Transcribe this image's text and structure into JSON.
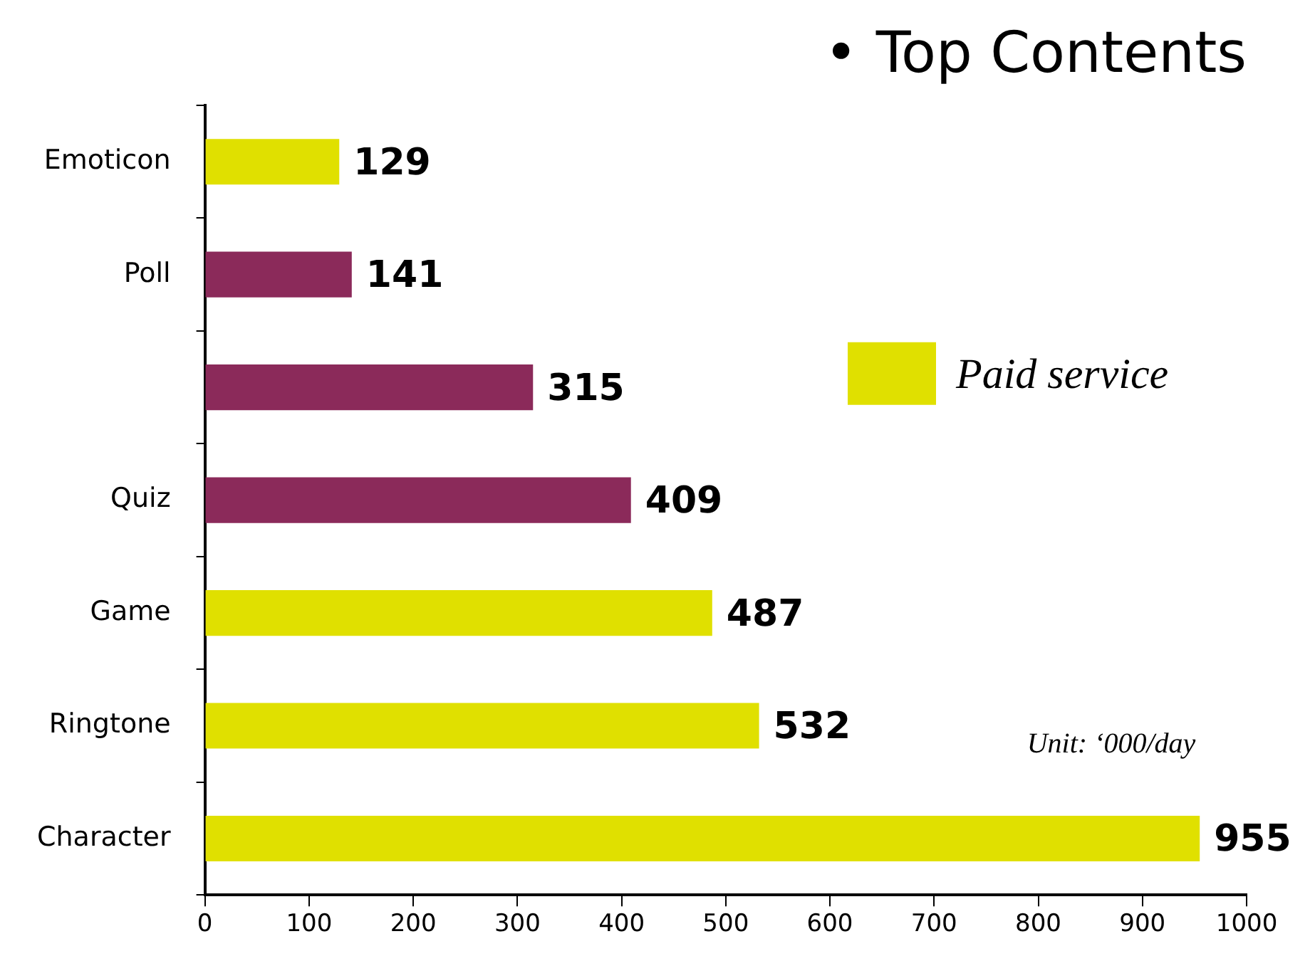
{
  "chart_data": {
    "type": "bar",
    "orientation": "horizontal",
    "title": "• Top Contents",
    "categories": [
      "Emoticon",
      "Poll",
      null,
      "Quiz",
      "Game",
      "Ringtone",
      "Character"
    ],
    "series": [
      {
        "name": "Paid service",
        "color": "#e0e000",
        "values": [
          129,
          null,
          null,
          null,
          487,
          532,
          955
        ]
      },
      {
        "color": "#8b2a5a",
        "values": [
          null,
          141,
          315,
          409,
          null,
          null,
          null
        ]
      }
    ],
    "xlim": [
      0,
      1000
    ],
    "xticks": [
      0,
      100,
      200,
      300,
      400,
      500,
      600,
      700,
      800,
      900,
      1000
    ],
    "data_labels": true,
    "legend": "right",
    "grid": false,
    "annotations": [
      "Unit: ‘000/day"
    ]
  }
}
